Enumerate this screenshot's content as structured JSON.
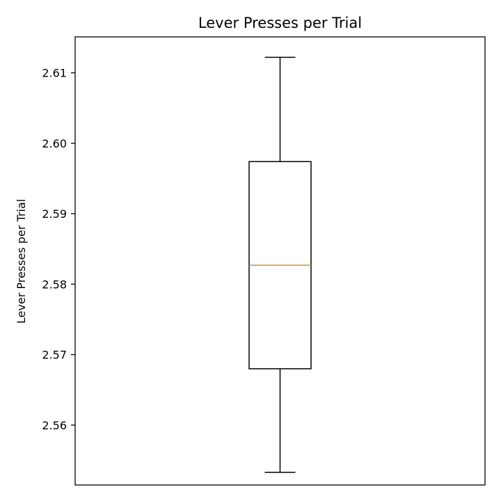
{
  "chart_data": {
    "type": "boxplot",
    "title": "Lever Presses per Trial",
    "xlabel": "",
    "ylabel": "Lever Presses per Trial",
    "ylim": [
      2.5515,
      2.6151
    ],
    "yticks": [
      2.56,
      2.57,
      2.58,
      2.59,
      2.6,
      2.61
    ],
    "ytick_labels": [
      "2.56",
      "2.57",
      "2.58",
      "2.59",
      "2.60",
      "2.61"
    ],
    "grid": false,
    "box": {
      "whisker_low": 2.5533,
      "q1": 2.568,
      "median": 2.5827,
      "q3": 2.5974,
      "whisker_high": 2.6122
    },
    "colors": {
      "box": "#000000",
      "median": "#e8892b",
      "axes": "#000000"
    }
  }
}
